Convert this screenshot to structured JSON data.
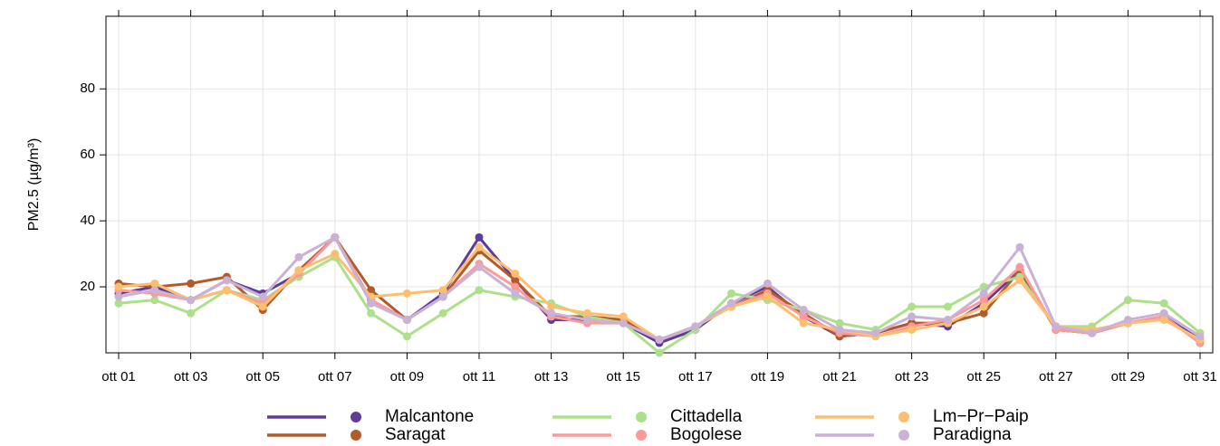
{
  "chart_data": {
    "type": "line",
    "y_label": "PM2.5 (µg/m³)",
    "categories": [
      "ott 01",
      null,
      "ott 03",
      null,
      "ott 05",
      null,
      "ott 07",
      null,
      "ott 09",
      null,
      "ott 11",
      null,
      "ott 13",
      null,
      "ott 15",
      null,
      "ott 17",
      null,
      "ott 19",
      null,
      "ott 21",
      null,
      "ott 23",
      null,
      "ott 25",
      null,
      "ott 27",
      null,
      "ott 29",
      null,
      "ott 31"
    ],
    "ylim": [
      0,
      102
    ],
    "yticks": [
      20,
      40,
      60,
      80
    ],
    "grid": true,
    "legend": "bottom",
    "series": [
      {
        "name": "Malcantone",
        "color": "#5e3c99",
        "values": [
          18,
          20,
          16,
          22,
          18,
          24,
          35,
          16,
          10,
          18,
          35,
          22,
          10,
          10,
          9,
          3,
          7,
          15,
          20,
          11,
          5,
          6,
          9,
          8,
          15,
          25,
          7,
          6,
          9,
          11,
          4
        ]
      },
      {
        "name": "Saragat",
        "color": "#b35a2a",
        "values": [
          21,
          20,
          21,
          23,
          13,
          25,
          35,
          19,
          10,
          17,
          31,
          22,
          11,
          11,
          10,
          4,
          8,
          14,
          19,
          12,
          5,
          6,
          9,
          9,
          12,
          25,
          7,
          6,
          9,
          11,
          3
        ]
      },
      {
        "name": "Cittadella",
        "color": "#ace08a",
        "values": [
          15,
          16,
          12,
          19,
          16,
          23,
          29,
          12,
          5,
          12,
          19,
          17,
          15,
          11,
          9,
          0,
          7,
          18,
          16,
          13,
          9,
          7,
          14,
          14,
          20,
          23,
          8,
          8,
          16,
          15,
          6
        ]
      },
      {
        "name": "Bogolese",
        "color": "#fb9a99",
        "values": [
          19,
          18,
          16,
          19,
          15,
          24,
          35,
          16,
          10,
          17,
          27,
          20,
          11,
          9,
          9,
          4,
          8,
          14,
          18,
          11,
          6,
          5,
          8,
          10,
          16,
          26,
          7,
          6,
          9,
          11,
          3
        ]
      },
      {
        "name": "Lm−Pr−Paip",
        "color": "#fdbf6f",
        "values": [
          20,
          21,
          16,
          19,
          14,
          25,
          30,
          17,
          18,
          19,
          32,
          24,
          14,
          12,
          11,
          4,
          8,
          14,
          17,
          9,
          7,
          5,
          7,
          9,
          14,
          22,
          8,
          7,
          9,
          10,
          4
        ]
      },
      {
        "name": "Paradigna",
        "color": "#cab2d6",
        "values": [
          17,
          19,
          16,
          22,
          17,
          29,
          35,
          15,
          10,
          17,
          26,
          18,
          12,
          10,
          9,
          4,
          8,
          15,
          21,
          13,
          7,
          6,
          11,
          10,
          18,
          32,
          8,
          6,
          10,
          12,
          5
        ]
      }
    ]
  }
}
